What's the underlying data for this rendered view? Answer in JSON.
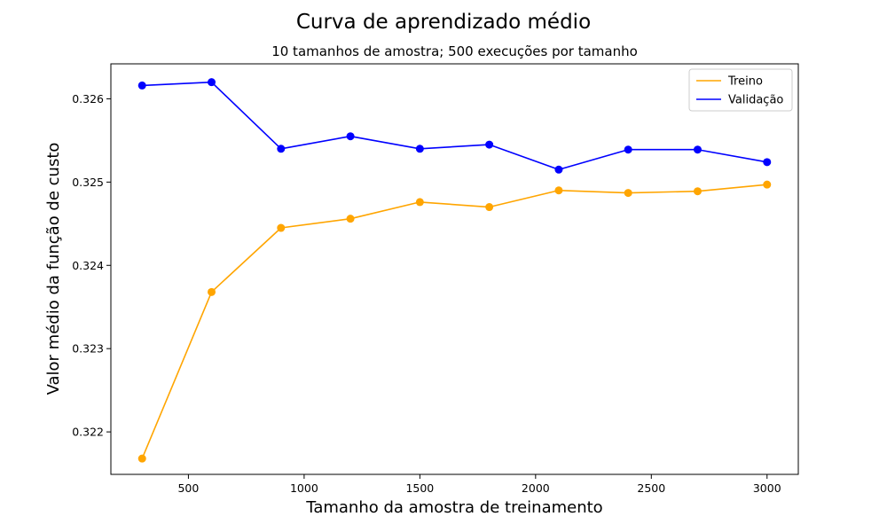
{
  "figure": {
    "title": "Curva de aprendizado médio"
  },
  "chart_data": {
    "type": "line",
    "title": "10 tamanhos de amostra; 500 execuções por tamanho",
    "xlabel": "Tamanho da amostra de treinamento",
    "ylabel": "Valor médio da função de custo",
    "x": [
      300,
      600,
      900,
      1200,
      1500,
      1800,
      2100,
      2400,
      2700,
      3000
    ],
    "xlim": [
      165,
      3135
    ],
    "ylim": [
      0.32149,
      0.32642
    ],
    "xticks": [
      500,
      1000,
      1500,
      2000,
      2500,
      3000
    ],
    "yticks": [
      0.322,
      0.323,
      0.324,
      0.325,
      0.326
    ],
    "ytick_labels": [
      "0.322",
      "0.323",
      "0.324",
      "0.325",
      "0.326"
    ],
    "grid": false,
    "legend_position": "top-right",
    "series": [
      {
        "name": "Treino",
        "color": "#ffa500",
        "values": [
          0.32168,
          0.32368,
          0.32445,
          0.32456,
          0.32476,
          0.3247,
          0.3249,
          0.32487,
          0.32489,
          0.32497
        ]
      },
      {
        "name": "Validação",
        "color": "#0000ff",
        "values": [
          0.32616,
          0.3262,
          0.3254,
          0.32555,
          0.3254,
          0.32545,
          0.32515,
          0.32539,
          0.32539,
          0.32524
        ]
      }
    ]
  }
}
